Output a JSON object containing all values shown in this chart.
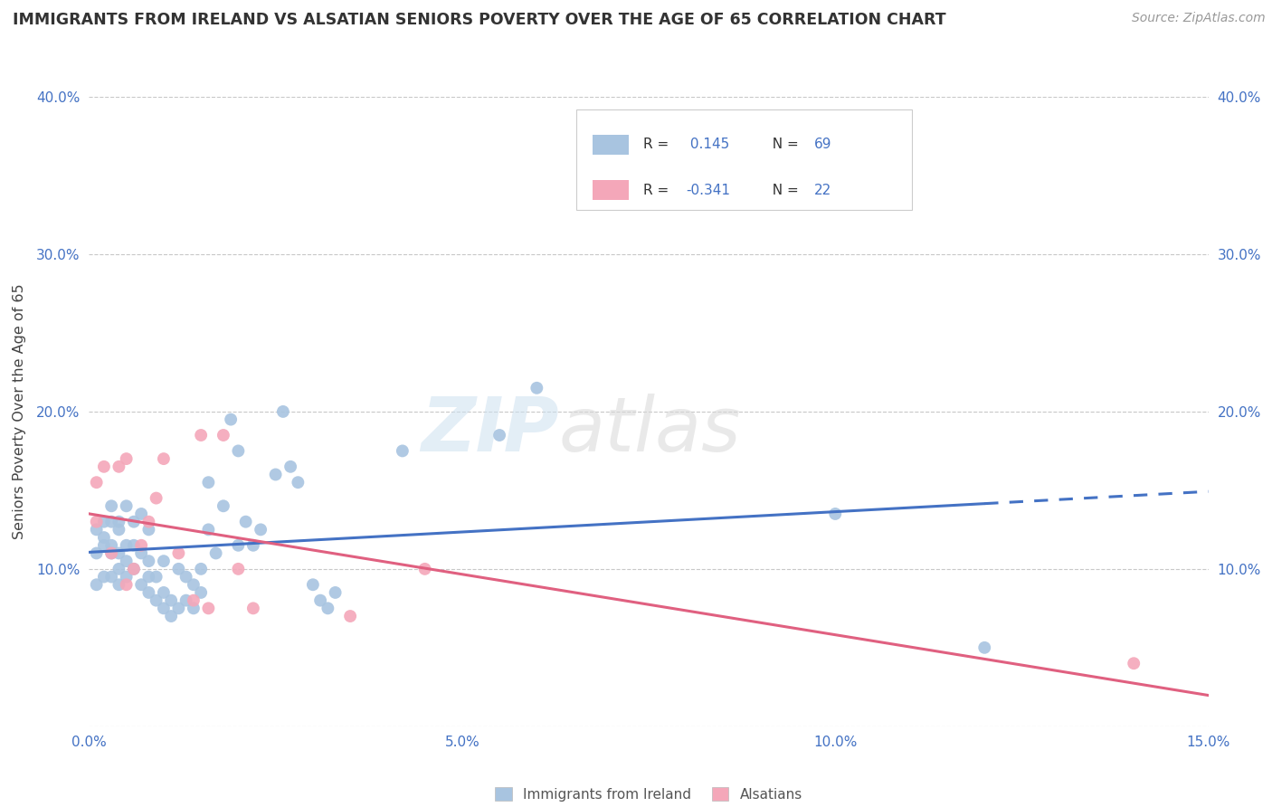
{
  "title": "IMMIGRANTS FROM IRELAND VS ALSATIAN SENIORS POVERTY OVER THE AGE OF 65 CORRELATION CHART",
  "source": "Source: ZipAtlas.com",
  "ylabel": "Seniors Poverty Over the Age of 65",
  "x_min": 0.0,
  "x_max": 0.15,
  "y_min": 0.0,
  "y_max": 0.4,
  "x_ticks": [
    0.0,
    0.05,
    0.1,
    0.15
  ],
  "x_tick_labels": [
    "0.0%",
    "5.0%",
    "10.0%",
    "15.0%"
  ],
  "y_ticks": [
    0.0,
    0.1,
    0.2,
    0.3,
    0.4
  ],
  "y_tick_labels": [
    "",
    "10.0%",
    "20.0%",
    "30.0%",
    "40.0%"
  ],
  "ireland_color": "#a8c4e0",
  "alsatian_color": "#f4a7b9",
  "ireland_line_color": "#4472c4",
  "alsatian_line_color": "#e06080",
  "ireland_R": 0.145,
  "ireland_N": 69,
  "alsatian_R": -0.341,
  "alsatian_N": 22,
  "watermark_zip": "ZIP",
  "watermark_atlas": "atlas",
  "legend_label_ireland": "Immigrants from Ireland",
  "legend_label_alsatian": "Alsatians",
  "ireland_x": [
    0.001,
    0.001,
    0.001,
    0.002,
    0.002,
    0.002,
    0.002,
    0.003,
    0.003,
    0.003,
    0.003,
    0.003,
    0.004,
    0.004,
    0.004,
    0.004,
    0.004,
    0.005,
    0.005,
    0.005,
    0.005,
    0.006,
    0.006,
    0.006,
    0.007,
    0.007,
    0.007,
    0.008,
    0.008,
    0.008,
    0.008,
    0.009,
    0.009,
    0.01,
    0.01,
    0.01,
    0.011,
    0.011,
    0.012,
    0.012,
    0.013,
    0.013,
    0.014,
    0.014,
    0.015,
    0.015,
    0.016,
    0.016,
    0.017,
    0.018,
    0.019,
    0.02,
    0.02,
    0.021,
    0.022,
    0.023,
    0.025,
    0.026,
    0.027,
    0.028,
    0.03,
    0.031,
    0.032,
    0.033,
    0.042,
    0.055,
    0.06,
    0.1,
    0.12
  ],
  "ireland_y": [
    0.09,
    0.11,
    0.125,
    0.095,
    0.115,
    0.13,
    0.12,
    0.095,
    0.115,
    0.13,
    0.11,
    0.14,
    0.1,
    0.11,
    0.125,
    0.09,
    0.13,
    0.095,
    0.105,
    0.115,
    0.14,
    0.1,
    0.115,
    0.13,
    0.09,
    0.11,
    0.135,
    0.095,
    0.105,
    0.125,
    0.085,
    0.08,
    0.095,
    0.075,
    0.085,
    0.105,
    0.07,
    0.08,
    0.075,
    0.1,
    0.08,
    0.095,
    0.075,
    0.09,
    0.085,
    0.1,
    0.125,
    0.155,
    0.11,
    0.14,
    0.195,
    0.115,
    0.175,
    0.13,
    0.115,
    0.125,
    0.16,
    0.2,
    0.165,
    0.155,
    0.09,
    0.08,
    0.075,
    0.085,
    0.175,
    0.185,
    0.215,
    0.135,
    0.05
  ],
  "alsatian_x": [
    0.001,
    0.001,
    0.002,
    0.003,
    0.004,
    0.005,
    0.005,
    0.006,
    0.007,
    0.008,
    0.009,
    0.01,
    0.012,
    0.014,
    0.015,
    0.016,
    0.018,
    0.02,
    0.022,
    0.035,
    0.045,
    0.14
  ],
  "alsatian_y": [
    0.13,
    0.155,
    0.165,
    0.11,
    0.165,
    0.09,
    0.17,
    0.1,
    0.115,
    0.13,
    0.145,
    0.17,
    0.11,
    0.08,
    0.185,
    0.075,
    0.185,
    0.1,
    0.075,
    0.07,
    0.1,
    0.04
  ]
}
